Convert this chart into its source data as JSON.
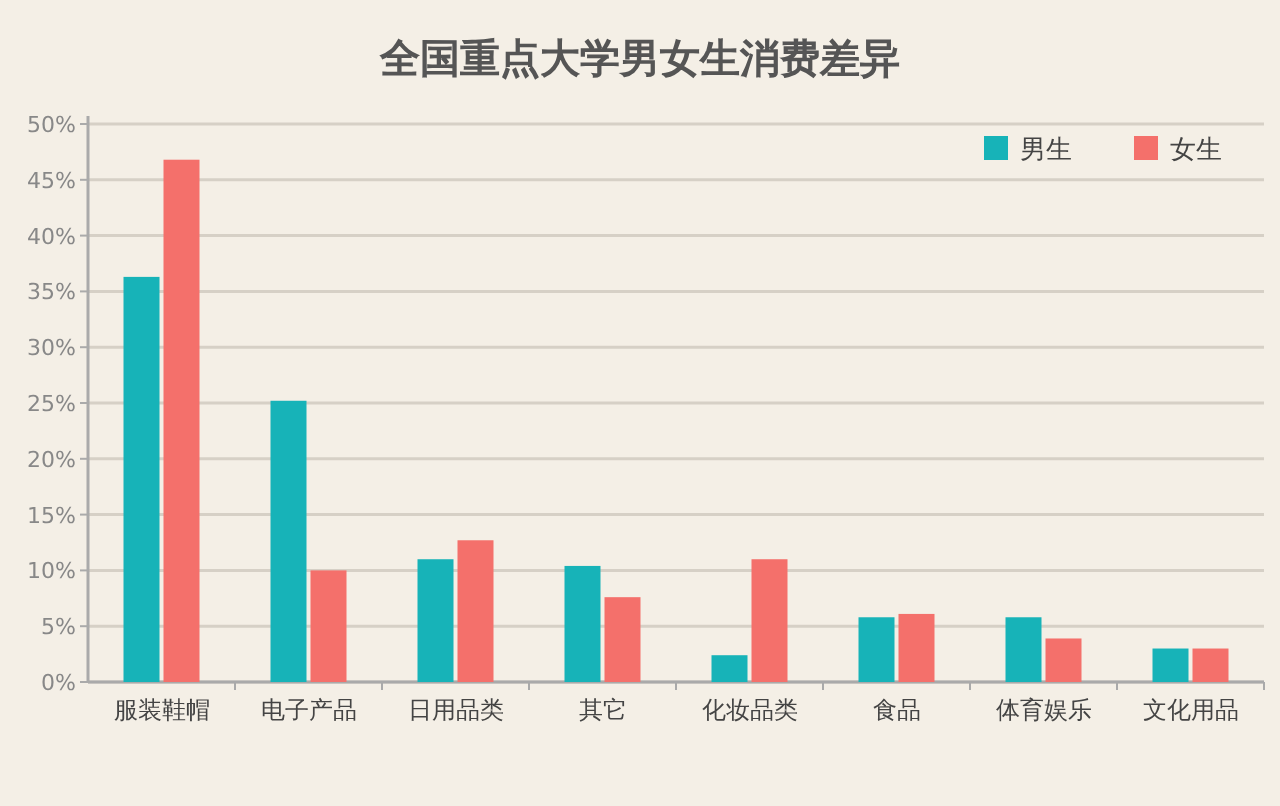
{
  "chart_data": {
    "type": "bar",
    "title": "全国重点大学男女生消费差异",
    "categories": [
      "服装鞋帽",
      "电子产品",
      "日用品类",
      "其它",
      "化妆品类",
      "食品",
      "体育娱乐",
      "文化用品"
    ],
    "series": [
      {
        "name": "男生",
        "color": "#17b3b8",
        "values": [
          36.3,
          25.2,
          11.0,
          10.4,
          2.4,
          5.8,
          5.8,
          3.0
        ]
      },
      {
        "name": "女生",
        "color": "#f4706b",
        "values": [
          46.8,
          10.0,
          12.7,
          7.6,
          11.0,
          6.1,
          3.9,
          3.0
        ]
      }
    ],
    "ylim": [
      0,
      50
    ],
    "yticks": [
      {
        "value": 0,
        "label": "0%"
      },
      {
        "value": 5,
        "label": "5%"
      },
      {
        "value": 10,
        "label": "10%"
      },
      {
        "value": 15,
        "label": "15%"
      },
      {
        "value": 20,
        "label": "20%"
      },
      {
        "value": 25,
        "label": "25%"
      },
      {
        "value": 30,
        "label": "30%"
      },
      {
        "value": 35,
        "label": "35%"
      },
      {
        "value": 40,
        "label": "40%"
      },
      {
        "value": 45,
        "label": "45%"
      },
      {
        "value": 50,
        "label": "50%"
      }
    ],
    "grid": "y",
    "legend": "top right"
  }
}
